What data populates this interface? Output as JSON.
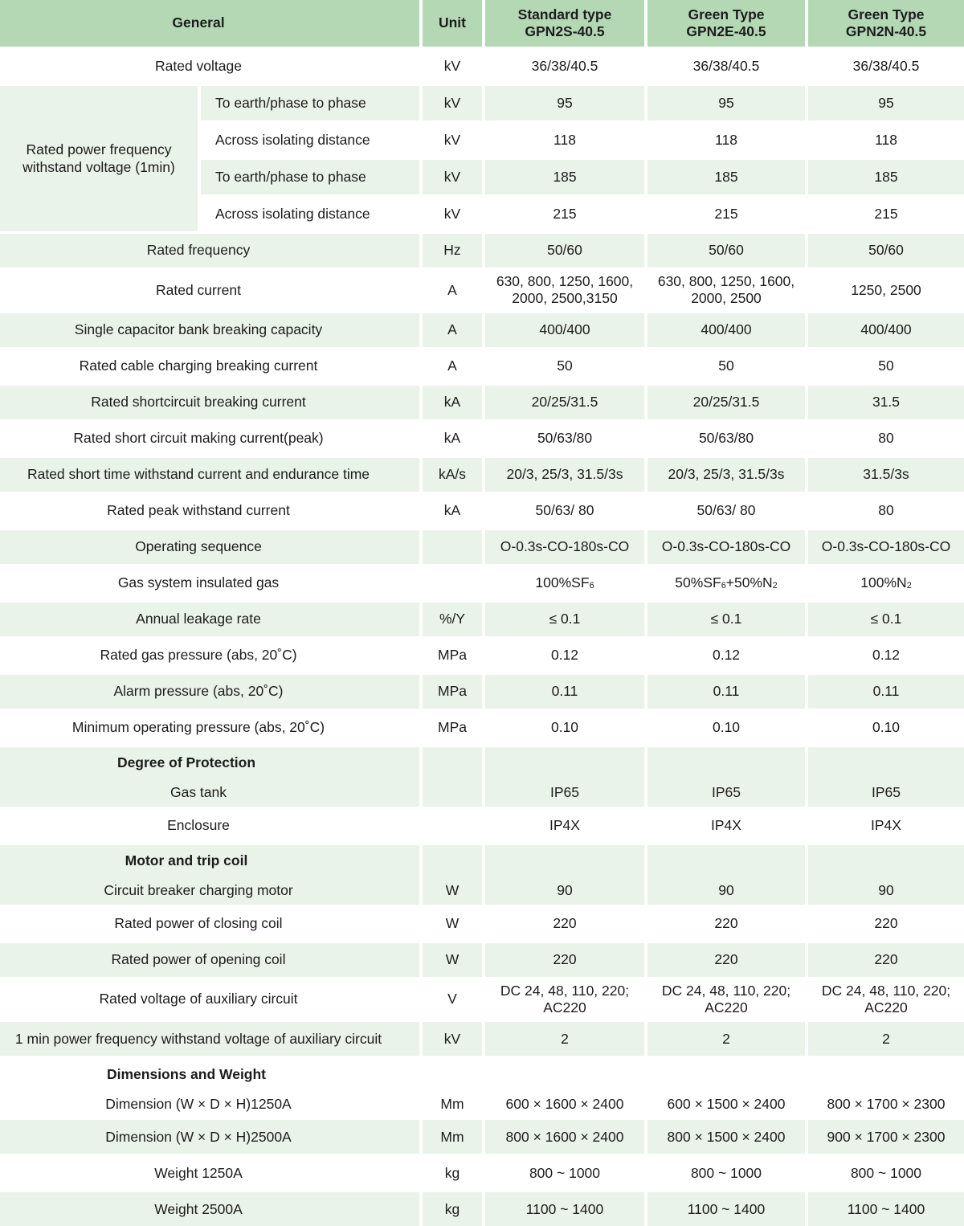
{
  "table": {
    "colors": {
      "header_bg": "#b4d8b4",
      "row_green": "#eaf3e9",
      "text": "#1c1c1c"
    },
    "header": {
      "general": "General",
      "unit": "Unit",
      "types": [
        {
          "line1": "Standard type",
          "line2": "GPN2S-40.5"
        },
        {
          "line1": "Green Type",
          "line2": "GPN2E-40.5"
        },
        {
          "line1": "Green Type",
          "line2": "GPN2N-40.5"
        }
      ]
    },
    "rows": [
      {
        "type": "data",
        "bg": "white",
        "label": "Rated voltage",
        "unit": "kV",
        "values": [
          "36/38/40.5",
          "36/38/40.5",
          "36/38/40.5"
        ]
      },
      {
        "type": "group",
        "group_label": "Rated power frequency withstand voltage (1min)",
        "sub": [
          {
            "bg": "green",
            "label": "To earth/phase to phase",
            "unit": "kV",
            "values": [
              "95",
              "95",
              "95"
            ]
          },
          {
            "bg": "white",
            "label": "Across isolating distance",
            "unit": "kV",
            "values": [
              "118",
              "118",
              "118"
            ]
          },
          {
            "bg": "green",
            "label": "To earth/phase to phase",
            "unit": "kV",
            "values": [
              "185",
              "185",
              "185"
            ]
          },
          {
            "bg": "white",
            "label": "Across isolating distance",
            "unit": "kV",
            "values": [
              "215",
              "215",
              "215"
            ]
          }
        ]
      },
      {
        "type": "data",
        "bg": "green",
        "label": "Rated frequency",
        "unit": "Hz",
        "values": [
          "50/60",
          "50/60",
          "50/60"
        ]
      },
      {
        "type": "data",
        "bg": "white",
        "label": "Rated current",
        "unit": "A",
        "values": [
          "630, 800, 1250, 1600, 2000, 2500,3150",
          "630, 800, 1250, 1600, 2000, 2500",
          "1250, 2500"
        ]
      },
      {
        "type": "data",
        "bg": "green",
        "label": "Single capacitor bank breaking capacity",
        "unit": "A",
        "values": [
          "400/400",
          "400/400",
          "400/400"
        ]
      },
      {
        "type": "data",
        "bg": "white",
        "label": "Rated cable charging breaking current",
        "unit": "A",
        "values": [
          "50",
          "50",
          "50"
        ]
      },
      {
        "type": "data",
        "bg": "green",
        "label": "Rated shortcircuit breaking current",
        "unit": "kA",
        "values": [
          "20/25/31.5",
          "20/25/31.5",
          "31.5"
        ]
      },
      {
        "type": "data",
        "bg": "white",
        "label": "Rated short circuit making current(peak)",
        "unit": "kA",
        "values": [
          "50/63/80",
          "50/63/80",
          "80"
        ]
      },
      {
        "type": "data",
        "bg": "green",
        "label": "Rated short time withstand current and endurance time",
        "unit": "kA/s",
        "values": [
          "20/3, 25/3, 31.5/3s",
          "20/3, 25/3, 31.5/3s",
          "31.5/3s"
        ]
      },
      {
        "type": "data",
        "bg": "white",
        "label": "Rated peak withstand current",
        "unit": "kA",
        "values": [
          "50/63/ 80",
          "50/63/ 80",
          "80"
        ]
      },
      {
        "type": "data",
        "bg": "green",
        "label": "Operating sequence",
        "unit": "",
        "values": [
          "O-0.3s-CO-180s-CO",
          "O-0.3s-CO-180s-CO",
          "O-0.3s-CO-180s-CO"
        ]
      },
      {
        "type": "data",
        "bg": "white",
        "label": "Gas system insulated gas",
        "unit": "",
        "values": [
          "100%SF₆",
          "50%SF₆+50%N₂",
          "100%N₂"
        ]
      },
      {
        "type": "data",
        "bg": "green",
        "label": "Annual leakage rate",
        "unit": "%/Y",
        "values": [
          "≤ 0.1",
          "≤ 0.1",
          "≤ 0.1"
        ]
      },
      {
        "type": "data",
        "bg": "white",
        "label": "Rated gas pressure (abs, 20˚C)",
        "unit": "MPa",
        "values": [
          "0.12",
          "0.12",
          "0.12"
        ]
      },
      {
        "type": "data",
        "bg": "green",
        "label": "Alarm pressure (abs, 20˚C)",
        "unit": "MPa",
        "values": [
          "0.11",
          "0.11",
          "0.11"
        ]
      },
      {
        "type": "data",
        "bg": "white",
        "label": "Minimum operating pressure (abs, 20˚C)",
        "unit": "MPa",
        "values": [
          "0.10",
          "0.10",
          "0.10"
        ]
      },
      {
        "type": "section",
        "bg": "green",
        "label": "Degree of Protection"
      },
      {
        "type": "data",
        "bg": "green",
        "after_section": true,
        "label": "Gas tank",
        "unit": "",
        "values": [
          "IP65",
          "IP65",
          "IP65"
        ]
      },
      {
        "type": "data",
        "bg": "white",
        "label": "Enclosure",
        "unit": "",
        "values": [
          "IP4X",
          "IP4X",
          "IP4X"
        ]
      },
      {
        "type": "section",
        "bg": "green",
        "label": "Motor and trip coil"
      },
      {
        "type": "data",
        "bg": "green",
        "after_section": true,
        "label": "Circuit breaker charging motor",
        "unit": "W",
        "values": [
          "90",
          "90",
          "90"
        ]
      },
      {
        "type": "data",
        "bg": "white",
        "label": "Rated power of closing coil",
        "unit": "W",
        "values": [
          "220",
          "220",
          "220"
        ]
      },
      {
        "type": "data",
        "bg": "green",
        "label": "Rated power of opening coil",
        "unit": "W",
        "values": [
          "220",
          "220",
          "220"
        ]
      },
      {
        "type": "data",
        "bg": "white",
        "label": "Rated voltage of auxiliary circuit",
        "unit": "V",
        "values": [
          "DC 24, 48, 110, 220; AC220",
          "DC 24, 48, 110, 220; AC220",
          "DC 24, 48, 110, 220; AC220"
        ]
      },
      {
        "type": "data",
        "bg": "green",
        "label": "1 min power frequency withstand voltage of auxiliary circuit",
        "unit": "kV",
        "values": [
          "2",
          "2",
          "2"
        ]
      },
      {
        "type": "section",
        "bg": "white",
        "label": "Dimensions and Weight"
      },
      {
        "type": "data",
        "bg": "white",
        "after_section": true,
        "label": "Dimension (W × D × H)1250A",
        "unit": "Mm",
        "values": [
          "600 × 1600 × 2400",
          "600 × 1500 × 2400",
          "800 × 1700 × 2300"
        ]
      },
      {
        "type": "data",
        "bg": "green",
        "label": "Dimension (W × D × H)2500A",
        "unit": "Mm",
        "values": [
          "800 × 1600 × 2400",
          "800 × 1500 × 2400",
          "900 × 1700 × 2300"
        ]
      },
      {
        "type": "data",
        "bg": "white",
        "label": "Weight 1250A",
        "unit": "kg",
        "values": [
          "800 ~ 1000",
          "800 ~ 1000",
          "800 ~ 1000"
        ]
      },
      {
        "type": "data",
        "bg": "green",
        "label": "Weight 2500A",
        "unit": "kg",
        "values": [
          "1100 ~ 1400",
          "1100 ~ 1400",
          "1100 ~ 1400"
        ]
      }
    ]
  }
}
